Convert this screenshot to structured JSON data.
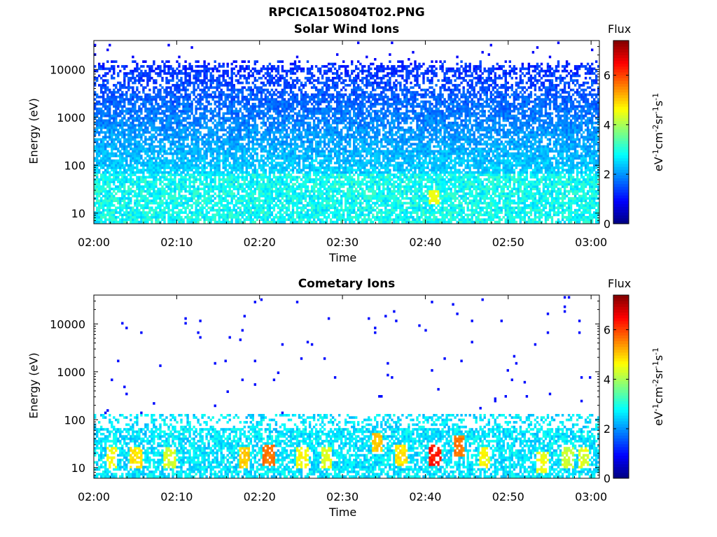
{
  "figure": {
    "title": "RPCICA150804T02.PNG"
  },
  "chart_data": [
    {
      "type": "heatmap",
      "title": "Solar Wind Ions",
      "xlabel": "Time",
      "ylabel": "Energy (eV)",
      "x_ticks": [
        "02:00",
        "02:10",
        "02:20",
        "02:30",
        "02:40",
        "02:50",
        "03:00"
      ],
      "y_ticks": [
        "10",
        "100",
        "1000",
        "10000"
      ],
      "y_scale": "log",
      "ylim": [
        6,
        40000
      ],
      "xlim": [
        "02:00",
        "03:01"
      ],
      "colorbar": {
        "title": "Flux",
        "label": "eV-1cm-2sr-1s-1",
        "range": [
          0,
          7.4
        ],
        "ticks": [
          "0",
          "2",
          "4",
          "6"
        ]
      },
      "description_values": {
        "dominant_energy_band": [
          30,
          15000
        ],
        "typical_flux_high_energy": 1.3,
        "typical_flux_low_energy": 3.0,
        "peak_flux": 4.5,
        "peak_time": "02:41",
        "peak_energy": 20
      }
    },
    {
      "type": "heatmap",
      "title": "Cometary Ions",
      "xlabel": "Time",
      "ylabel": "Energy (eV)",
      "x_ticks": [
        "02:00",
        "02:10",
        "02:20",
        "02:30",
        "02:40",
        "02:50",
        "03:00"
      ],
      "y_ticks": [
        "10",
        "100",
        "1000",
        "10000"
      ],
      "y_scale": "log",
      "ylim": [
        6,
        40000
      ],
      "xlim": [
        "02:00",
        "03:01"
      ],
      "colorbar": {
        "title": "Flux",
        "label": "eV-1cm-2sr-1s-1",
        "range": [
          0,
          7.4
        ],
        "ticks": [
          "0",
          "2",
          "4",
          "6"
        ]
      },
      "description_values": {
        "dominant_energy_band": [
          6,
          130
        ],
        "typical_flux": 2.7,
        "bursts": [
          {
            "time": "02:02",
            "energy": 15,
            "flux": 4.8
          },
          {
            "time": "02:05",
            "energy": 15,
            "flux": 5.0
          },
          {
            "time": "02:09",
            "energy": 15,
            "flux": 4.5
          },
          {
            "time": "02:18",
            "energy": 15,
            "flux": 5.2
          },
          {
            "time": "02:21",
            "energy": 18,
            "flux": 5.8
          },
          {
            "time": "02:25",
            "energy": 15,
            "flux": 4.8
          },
          {
            "time": "02:28",
            "energy": 15,
            "flux": 4.6
          },
          {
            "time": "02:34",
            "energy": 30,
            "flux": 5.2
          },
          {
            "time": "02:37",
            "energy": 18,
            "flux": 5.0
          },
          {
            "time": "02:41",
            "energy": 18,
            "flux": 6.5
          },
          {
            "time": "02:44",
            "energy": 28,
            "flux": 5.8
          },
          {
            "time": "02:47",
            "energy": 15,
            "flux": 4.8
          },
          {
            "time": "02:54",
            "energy": 12,
            "flux": 4.7
          },
          {
            "time": "02:57",
            "energy": 15,
            "flux": 4.4
          },
          {
            "time": "02:59",
            "energy": 15,
            "flux": 4.6
          }
        ]
      }
    }
  ]
}
